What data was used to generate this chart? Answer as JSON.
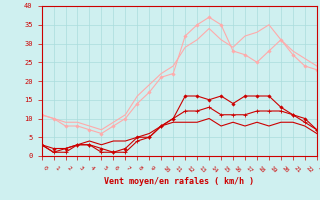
{
  "x": [
    0,
    1,
    2,
    3,
    4,
    5,
    6,
    7,
    8,
    9,
    10,
    11,
    12,
    13,
    14,
    15,
    16,
    17,
    18,
    19,
    20,
    21,
    22,
    23
  ],
  "line1": [
    3,
    2,
    2,
    3,
    3,
    2,
    1,
    2,
    5,
    5,
    8,
    10,
    16,
    16,
    15,
    16,
    14,
    16,
    16,
    16,
    13,
    11,
    10,
    7
  ],
  "line2": [
    3,
    1,
    1,
    3,
    3,
    1,
    1,
    1,
    4,
    5,
    8,
    10,
    12,
    12,
    13,
    11,
    11,
    11,
    12,
    12,
    12,
    11,
    9,
    7
  ],
  "line3": [
    3,
    1,
    2,
    3,
    4,
    3,
    4,
    4,
    5,
    6,
    8,
    9,
    9,
    9,
    10,
    8,
    9,
    8,
    9,
    8,
    9,
    9,
    8,
    6
  ],
  "line4": [
    11,
    10,
    8,
    8,
    7,
    6,
    8,
    10,
    14,
    17,
    21,
    22,
    32,
    35,
    37,
    35,
    28,
    27,
    25,
    28,
    31,
    27,
    24,
    23
  ],
  "line5": [
    11,
    10,
    9,
    9,
    8,
    7,
    9,
    11,
    16,
    19,
    22,
    24,
    29,
    31,
    34,
    31,
    29,
    32,
    33,
    35,
    31,
    28,
    26,
    24
  ],
  "bg_color": "#cff0f0",
  "grid_color": "#aadddd",
  "line1_color": "#cc0000",
  "line2_color": "#cc0000",
  "line3_color": "#cc0000",
  "line4_color": "#ffaaaa",
  "line5_color": "#ffaaaa",
  "xlabel": "Vent moyen/en rafales ( km/h )",
  "xlim": [
    0,
    23
  ],
  "ylim": [
    0,
    40
  ],
  "yticks": [
    0,
    5,
    10,
    15,
    20,
    25,
    30,
    35,
    40
  ],
  "xticks": [
    0,
    1,
    2,
    3,
    4,
    5,
    6,
    7,
    8,
    9,
    10,
    11,
    12,
    13,
    14,
    15,
    16,
    17,
    18,
    19,
    20,
    21,
    22,
    23
  ]
}
